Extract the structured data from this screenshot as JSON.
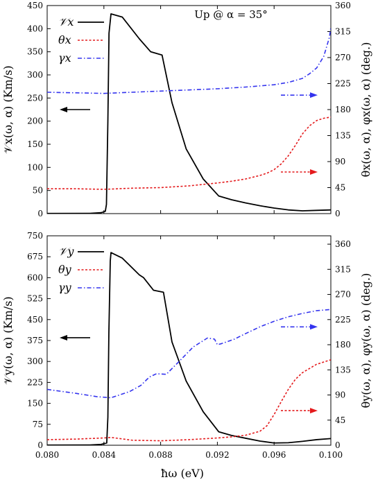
{
  "figure": {
    "x_axis_label": "ħω (eV)",
    "x_ticks": [
      "0.080",
      "0.084",
      "0.088",
      "0.092",
      "0.096",
      "0.100"
    ],
    "colors": {
      "V": "#000000",
      "theta": "#e41a1c",
      "gamma": "#3333ee"
    }
  },
  "chart_data": [
    {
      "type": "line",
      "annotation": "Up @ α = 35°",
      "left_axis_label": "𝒱x(ω, α) (Km/s)",
      "right_axis_label": "θx(ω, α),  φx(ω, α) (deg.)",
      "xlim": [
        0.08,
        0.1
      ],
      "ylim_left": [
        0,
        450
      ],
      "ylim_right": [
        0,
        360
      ],
      "left_ticks": [
        "0",
        "50",
        "100",
        "150",
        "200",
        "250",
        "300",
        "350",
        "400",
        "450"
      ],
      "right_ticks": [
        "0",
        "45",
        "90",
        "135",
        "180",
        "225",
        "270",
        "315",
        "360"
      ],
      "legend": [
        "𝒱x",
        "θx",
        "γx"
      ],
      "series": [
        {
          "name": "𝒱x",
          "axis": "left",
          "style": "solid",
          "points": [
            [
              0.08,
              0.3
            ],
            [
              0.083,
              0.5
            ],
            [
              0.0838,
              2
            ],
            [
              0.0841,
              5
            ],
            [
              0.08418,
              20
            ],
            [
              0.08428,
              200
            ],
            [
              0.08436,
              390
            ],
            [
              0.0845,
              432
            ],
            [
              0.0853,
              425
            ],
            [
              0.0865,
              378
            ],
            [
              0.0873,
              350
            ],
            [
              0.0881,
              343
            ],
            [
              0.0888,
              240
            ],
            [
              0.0898,
              140
            ],
            [
              0.091,
              75
            ],
            [
              0.0921,
              38
            ],
            [
              0.093,
              30
            ],
            [
              0.094,
              23
            ],
            [
              0.095,
              17
            ],
            [
              0.096,
              12
            ],
            [
              0.097,
              8
            ],
            [
              0.098,
              6
            ],
            [
              0.099,
              7
            ],
            [
              0.1,
              8
            ]
          ]
        },
        {
          "name": "θx",
          "axis": "right",
          "style": "dotted",
          "points": [
            [
              0.08,
              43
            ],
            [
              0.082,
              43
            ],
            [
              0.084,
              42
            ],
            [
              0.086,
              44
            ],
            [
              0.088,
              45
            ],
            [
              0.09,
              48
            ],
            [
              0.092,
              53
            ],
            [
              0.093,
              56
            ],
            [
              0.094,
              60
            ],
            [
              0.095,
              66
            ],
            [
              0.0955,
              70
            ],
            [
              0.096,
              76
            ],
            [
              0.0965,
              86
            ],
            [
              0.097,
              100
            ],
            [
              0.0975,
              118
            ],
            [
              0.098,
              138
            ],
            [
              0.0985,
              152
            ],
            [
              0.099,
              161
            ],
            [
              0.0995,
              165
            ],
            [
              0.1,
              167
            ]
          ]
        },
        {
          "name": "γx",
          "axis": "right",
          "style": "dashdot",
          "points": [
            [
              0.08,
              210
            ],
            [
              0.082,
              209
            ],
            [
              0.084,
              208
            ],
            [
              0.086,
              210
            ],
            [
              0.088,
              212
            ],
            [
              0.09,
              214
            ],
            [
              0.092,
              216
            ],
            [
              0.094,
              219
            ],
            [
              0.096,
              223
            ],
            [
              0.097,
              227
            ],
            [
              0.098,
              234
            ],
            [
              0.0985,
              242
            ],
            [
              0.099,
              252
            ],
            [
              0.0995,
              272
            ],
            [
              0.0999,
              305
            ],
            [
              0.1,
              322
            ]
          ]
        }
      ],
      "arrows": [
        {
          "points_to": "left",
          "color": "#000000",
          "y_left": 225
        },
        {
          "points_to": "right",
          "color": "#3333ee",
          "y_right": 205
        },
        {
          "points_to": "right",
          "color": "#e41a1c",
          "y_right": 72
        }
      ]
    },
    {
      "type": "line",
      "annotation": "",
      "left_axis_label": "𝒱y(ω, α) (Km/s)",
      "right_axis_label": "θy(ω, α),  φy(ω, α) (deg.)",
      "xlim": [
        0.08,
        0.1
      ],
      "ylim_left": [
        0,
        750
      ],
      "ylim_right": [
        0,
        375
      ],
      "left_ticks": [
        "0",
        "75",
        "150",
        "225",
        "300",
        "375",
        "450",
        "525",
        "600",
        "675",
        "750"
      ],
      "right_ticks": [
        "0",
        "45",
        "90",
        "135",
        "180",
        "225",
        "270",
        "315",
        "360"
      ],
      "legend": [
        "𝒱y",
        "θy",
        "γy"
      ],
      "series": [
        {
          "name": "𝒱y",
          "axis": "left",
          "style": "solid",
          "points": [
            [
              0.08,
              0.5
            ],
            [
              0.083,
              1
            ],
            [
              0.0838,
              3
            ],
            [
              0.0842,
              8
            ],
            [
              0.08428,
              100
            ],
            [
              0.08435,
              400
            ],
            [
              0.08445,
              660
            ],
            [
              0.0845,
              690
            ],
            [
              0.0853,
              670
            ],
            [
              0.0865,
              610
            ],
            [
              0.0868,
              600
            ],
            [
              0.0875,
              555
            ],
            [
              0.0882,
              548
            ],
            [
              0.0888,
              370
            ],
            [
              0.0898,
              230
            ],
            [
              0.091,
              120
            ],
            [
              0.0921,
              48
            ],
            [
              0.093,
              35
            ],
            [
              0.094,
              25
            ],
            [
              0.095,
              15
            ],
            [
              0.096,
              8
            ],
            [
              0.097,
              9
            ],
            [
              0.098,
              14
            ],
            [
              0.099,
              20
            ],
            [
              0.1,
              24
            ]
          ]
        },
        {
          "name": "θy",
          "axis": "right",
          "style": "dotted",
          "points": [
            [
              0.08,
              10
            ],
            [
              0.082,
              11
            ],
            [
              0.084,
              13
            ],
            [
              0.0845,
              14
            ],
            [
              0.086,
              9
            ],
            [
              0.088,
              8
            ],
            [
              0.09,
              10
            ],
            [
              0.092,
              13
            ],
            [
              0.093,
              15
            ],
            [
              0.094,
              18
            ],
            [
              0.095,
              25
            ],
            [
              0.0955,
              35
            ],
            [
              0.096,
              55
            ],
            [
              0.0965,
              78
            ],
            [
              0.097,
              100
            ],
            [
              0.0975,
              118
            ],
            [
              0.098,
              130
            ],
            [
              0.099,
              145
            ],
            [
              0.1,
              153
            ]
          ]
        },
        {
          "name": "γy",
          "axis": "right",
          "style": "dashdot",
          "points": [
            [
              0.08,
              100
            ],
            [
              0.082,
              93
            ],
            [
              0.0835,
              87
            ],
            [
              0.0845,
              85
            ],
            [
              0.0858,
              96
            ],
            [
              0.0866,
              107
            ],
            [
              0.0872,
              122
            ],
            [
              0.0877,
              128
            ],
            [
              0.0884,
              127
            ],
            [
              0.0893,
              150
            ],
            [
              0.0903,
              176
            ],
            [
              0.0913,
              192
            ],
            [
              0.0918,
              190
            ],
            [
              0.092,
              180
            ],
            [
              0.0923,
              182
            ],
            [
              0.0932,
              190
            ],
            [
              0.094,
              200
            ],
            [
              0.095,
              212
            ],
            [
              0.096,
              222
            ],
            [
              0.097,
              230
            ],
            [
              0.098,
              236
            ],
            [
              0.099,
              241
            ],
            [
              0.1,
              243
            ]
          ]
        }
      ],
      "arrows": [
        {
          "points_to": "left",
          "color": "#000000",
          "y_left": 385
        },
        {
          "points_to": "right",
          "color": "#3333ee",
          "y_right": 212
        },
        {
          "points_to": "right",
          "color": "#e41a1c",
          "y_right": 62
        }
      ]
    }
  ]
}
